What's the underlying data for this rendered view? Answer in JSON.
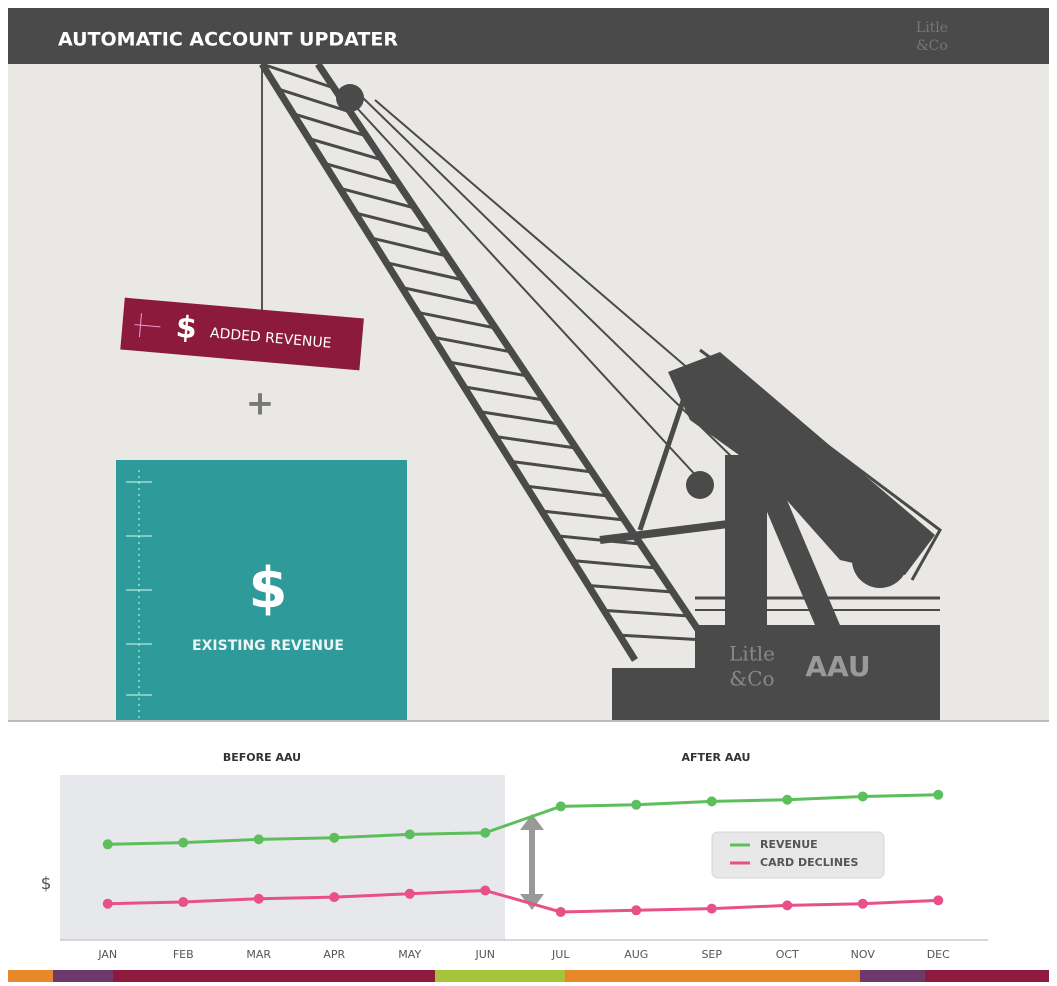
{
  "header": {
    "title": "AUTOMATIC ACCOUNT UPDATER",
    "logo": [
      "Litle",
      "&Co"
    ]
  },
  "illustration": {
    "added_symbol": "$",
    "added_revenue": "ADDED REVENUE",
    "plus": "+",
    "existing_symbol": "$",
    "existing_revenue": "EXISTING REVENUE",
    "hull_logo": [
      "Litle",
      "&Co"
    ],
    "hull_label": "AAU"
  },
  "chart_data": {
    "type": "line",
    "annotations": [
      "BEFORE AAU",
      "AFTER AAU"
    ],
    "y_label": "$",
    "categories": [
      "JAN",
      "FEB",
      "MAR",
      "APR",
      "MAY",
      "JUN",
      "JUL",
      "AUG",
      "SEP",
      "OCT",
      "NOV",
      "DEC"
    ],
    "series": [
      {
        "name": "REVENUE",
        "color": "#5cbf5c",
        "values": [
          58,
          59,
          61,
          62,
          64,
          65,
          81,
          82,
          84,
          85,
          87,
          88
        ]
      },
      {
        "name": "CARD DECLINES",
        "color": "#e8508a",
        "values": [
          22,
          23,
          25,
          26,
          28,
          30,
          17,
          18,
          19,
          21,
          22,
          24
        ]
      }
    ],
    "ylim": [
      0,
      100
    ],
    "grid": false,
    "legend": "right"
  }
}
